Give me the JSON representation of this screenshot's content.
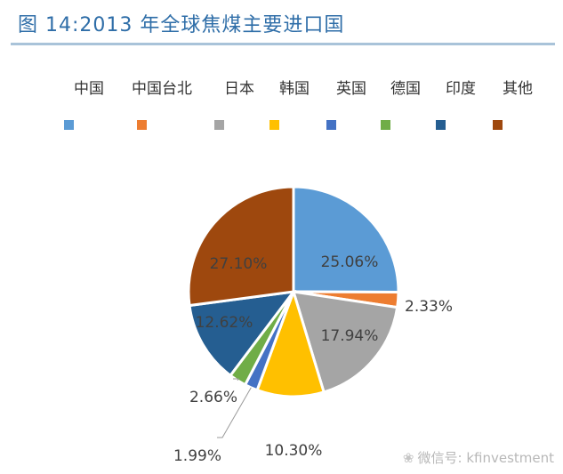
{
  "title": "图 14:2013 年全球焦煤主要进口国",
  "watermark": "微信号: kfinvestment",
  "chart_data": {
    "type": "pie",
    "title": "",
    "legend_position": "top",
    "series": [
      {
        "name": "中国",
        "value": 25.06,
        "label": "25.06%",
        "color": "#5b9bd5"
      },
      {
        "name": "中国台北",
        "value": 2.33,
        "label": "2.33%",
        "color": "#ed7d31"
      },
      {
        "name": "日本",
        "value": 17.94,
        "label": "17.94%",
        "color": "#a5a5a5"
      },
      {
        "name": "韩国",
        "value": 10.3,
        "label": "10.30%",
        "color": "#ffc000"
      },
      {
        "name": "英国",
        "value": 1.99,
        "label": "1.99%",
        "color": "#4472c4"
      },
      {
        "name": "德国",
        "value": 2.66,
        "label": "2.66%",
        "color": "#70ad47"
      },
      {
        "name": "印度",
        "value": 12.62,
        "label": "12.62%",
        "color": "#255e91"
      },
      {
        "name": "其他",
        "value": 27.1,
        "label": "27.10%",
        "color": "#9e480e"
      }
    ]
  }
}
